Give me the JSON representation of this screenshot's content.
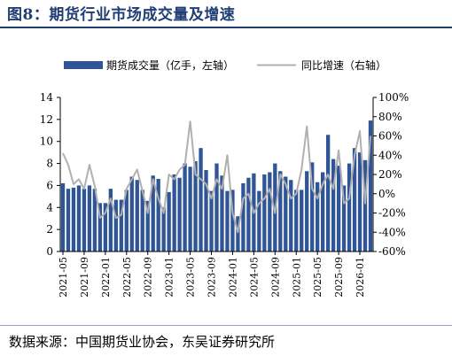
{
  "title": "图8：期货行业市场成交量及增速",
  "source": "数据来源：中国期货业协会，东吴证券研究所",
  "colors": {
    "bar": "#2f5597",
    "line": "#b0b0b0",
    "title": "#1f3e73"
  },
  "chart_data": {
    "type": "bar+line",
    "legend_position": "top",
    "grid": false,
    "series": [
      {
        "name": "期货成交量（亿手，左轴）",
        "type": "bar",
        "axis": "left",
        "values": [
          6.2,
          5.7,
          5.8,
          6.0,
          5.7,
          6.0,
          5.7,
          4.4,
          4.4,
          5.7,
          4.7,
          4.7,
          5.6,
          6.8,
          6.5,
          5.6,
          4.6,
          6.9,
          6.6,
          4.0,
          5.4,
          7.0,
          6.7,
          8.0,
          7.7,
          8.2,
          9.4,
          7.4,
          5.5,
          8.0,
          6.9,
          5.5,
          5.6,
          3.2,
          6.2,
          6.7,
          7.1,
          5.5,
          7.0,
          7.2,
          8.0,
          7.3,
          6.8,
          6.5,
          5.6,
          5.6,
          7.3,
          8.1,
          6.3,
          7.2,
          10.6,
          8.4,
          7.8,
          6.0,
          8.0,
          9.4,
          9.0,
          8.3,
          11.9
        ]
      },
      {
        "name": "同比增速（右轴）",
        "type": "line",
        "axis": "right",
        "values": [
          42,
          30,
          10,
          15,
          5,
          30,
          8,
          -25,
          -20,
          -5,
          -25,
          -22,
          5,
          15,
          25,
          3,
          -20,
          15,
          -5,
          -20,
          20,
          15,
          25,
          30,
          75,
          20,
          15,
          10,
          -5,
          15,
          5,
          40,
          -20,
          -40,
          -5,
          0,
          -20,
          -10,
          -5,
          5,
          -20,
          20,
          10,
          -5,
          0,
          25,
          70,
          5,
          -5,
          10,
          20,
          5,
          45,
          -10,
          -5,
          40,
          65,
          -10,
          60
        ]
      }
    ],
    "x_tick_labels": [
      "2021-05",
      "2021-09",
      "2022-01",
      "2022-05",
      "2022-09",
      "2023-01",
      "2023-05",
      "2023-09",
      "2024-01",
      "2024-05",
      "2024-09",
      "2025-01",
      "2025-05",
      "2025-09",
      "2026-01"
    ],
    "y_left": {
      "min": 0,
      "max": 14,
      "ticks": [
        "0",
        "2",
        "4",
        "6",
        "8",
        "10",
        "12",
        "14"
      ]
    },
    "y_right": {
      "min": -60,
      "max": 100,
      "ticks": [
        "-60%",
        "-40%",
        "-20%",
        "0%",
        "20%",
        "40%",
        "60%",
        "80%",
        "100%"
      ]
    }
  }
}
